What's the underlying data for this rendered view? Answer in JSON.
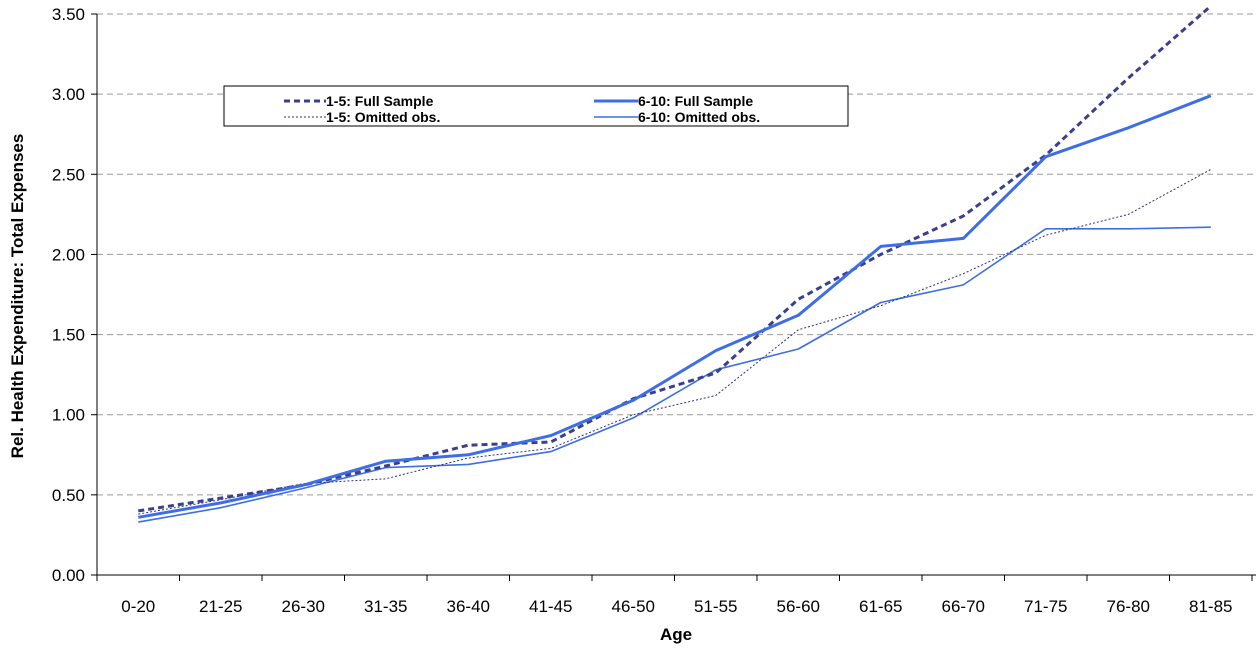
{
  "chart_data": {
    "type": "line",
    "xlabel": "Age",
    "ylabel": "Rel. Health Expenditure: Total Expenses",
    "categories": [
      "0-20",
      "21-25",
      "26-30",
      "31-35",
      "36-40",
      "41-45",
      "46-50",
      "51-55",
      "56-60",
      "61-65",
      "66-70",
      "71-75",
      "76-80",
      "81-85"
    ],
    "ylim": [
      0,
      3.5
    ],
    "yticks": [
      "0.00",
      "0.50",
      "1.00",
      "1.50",
      "2.00",
      "2.50",
      "3.00",
      "3.50"
    ],
    "grid": "horizontal dashed",
    "legend_position": "top-left inside",
    "series": [
      {
        "name": "1-5: Full Sample",
        "style": "dashed-thick",
        "color": "#3b3f8f",
        "values": [
          0.4,
          0.48,
          0.56,
          0.68,
          0.81,
          0.83,
          1.1,
          1.26,
          1.72,
          2.0,
          2.24,
          2.62,
          3.1,
          3.55
        ]
      },
      {
        "name": "6-10: Full Sample",
        "style": "solid-thick",
        "color": "#3d6ee6",
        "values": [
          0.36,
          0.45,
          0.56,
          0.71,
          0.75,
          0.87,
          1.09,
          1.4,
          1.62,
          2.05,
          2.1,
          2.61,
          2.79,
          2.99
        ]
      },
      {
        "name": "1-5: Omitted obs.",
        "style": "dotted-thin",
        "color": "#2b2f7f",
        "values": [
          0.38,
          0.47,
          0.57,
          0.6,
          0.73,
          0.79,
          1.0,
          1.12,
          1.53,
          1.68,
          1.88,
          2.12,
          2.25,
          2.53
        ]
      },
      {
        "name": "6-10: Omitted obs.",
        "style": "solid-thin",
        "color": "#3d6ee6",
        "values": [
          0.33,
          0.42,
          0.54,
          0.67,
          0.69,
          0.77,
          0.98,
          1.28,
          1.41,
          1.7,
          1.81,
          2.16,
          2.16,
          2.17
        ]
      }
    ]
  }
}
